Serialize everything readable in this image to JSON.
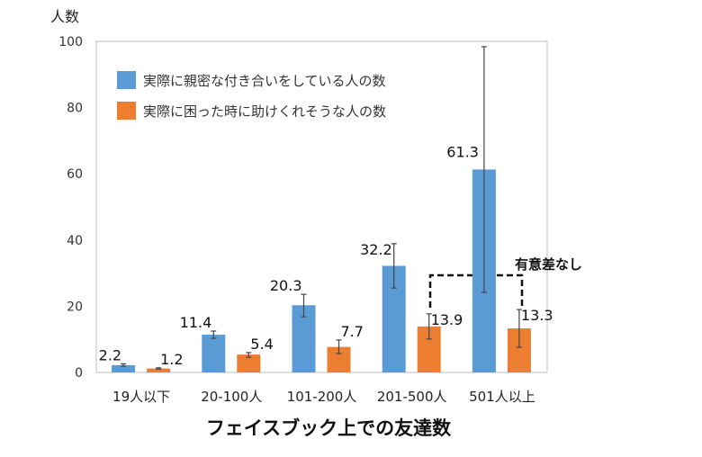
{
  "chart_data": {
    "type": "bar",
    "title": "",
    "ylabel": "人数",
    "xlabel": "フェイスブック上での友達数",
    "categories": [
      "19人以下",
      "20-100人",
      "101-200人",
      "201-500人",
      "501人以上"
    ],
    "ylim": [
      0,
      100
    ],
    "yticks": [
      0,
      20,
      40,
      60,
      80,
      100
    ],
    "grid": false,
    "legend_position": "top-left",
    "series": [
      {
        "name": "実際に親密な付き合いをしている人の数",
        "color": "#5b9bd5",
        "values": [
          2.2,
          11.4,
          20.3,
          32.2,
          61.3
        ],
        "labels": [
          "2.2",
          "11.4",
          "20.3",
          "32.2",
          "61.3"
        ],
        "error_low": [
          1.9,
          10.3,
          16.8,
          25.5,
          24.2
        ],
        "error_high": [
          2.6,
          12.5,
          23.6,
          38.9,
          98.4
        ]
      },
      {
        "name": "実際に困った時に助けくれそうな人の数",
        "color": "#ed7d31",
        "values": [
          1.2,
          5.4,
          7.7,
          13.9,
          13.3
        ],
        "labels": [
          "1.2",
          "5.4",
          "7.7",
          "13.9",
          "13.3"
        ],
        "error_low": [
          1.0,
          4.6,
          5.7,
          10.1,
          7.6
        ],
        "error_high": [
          1.4,
          6.0,
          9.8,
          17.7,
          19.0
        ]
      }
    ],
    "annotations": [
      {
        "text": "有意差なし",
        "between": "201-500人 orange bar and 501人以上 orange bar"
      }
    ]
  }
}
